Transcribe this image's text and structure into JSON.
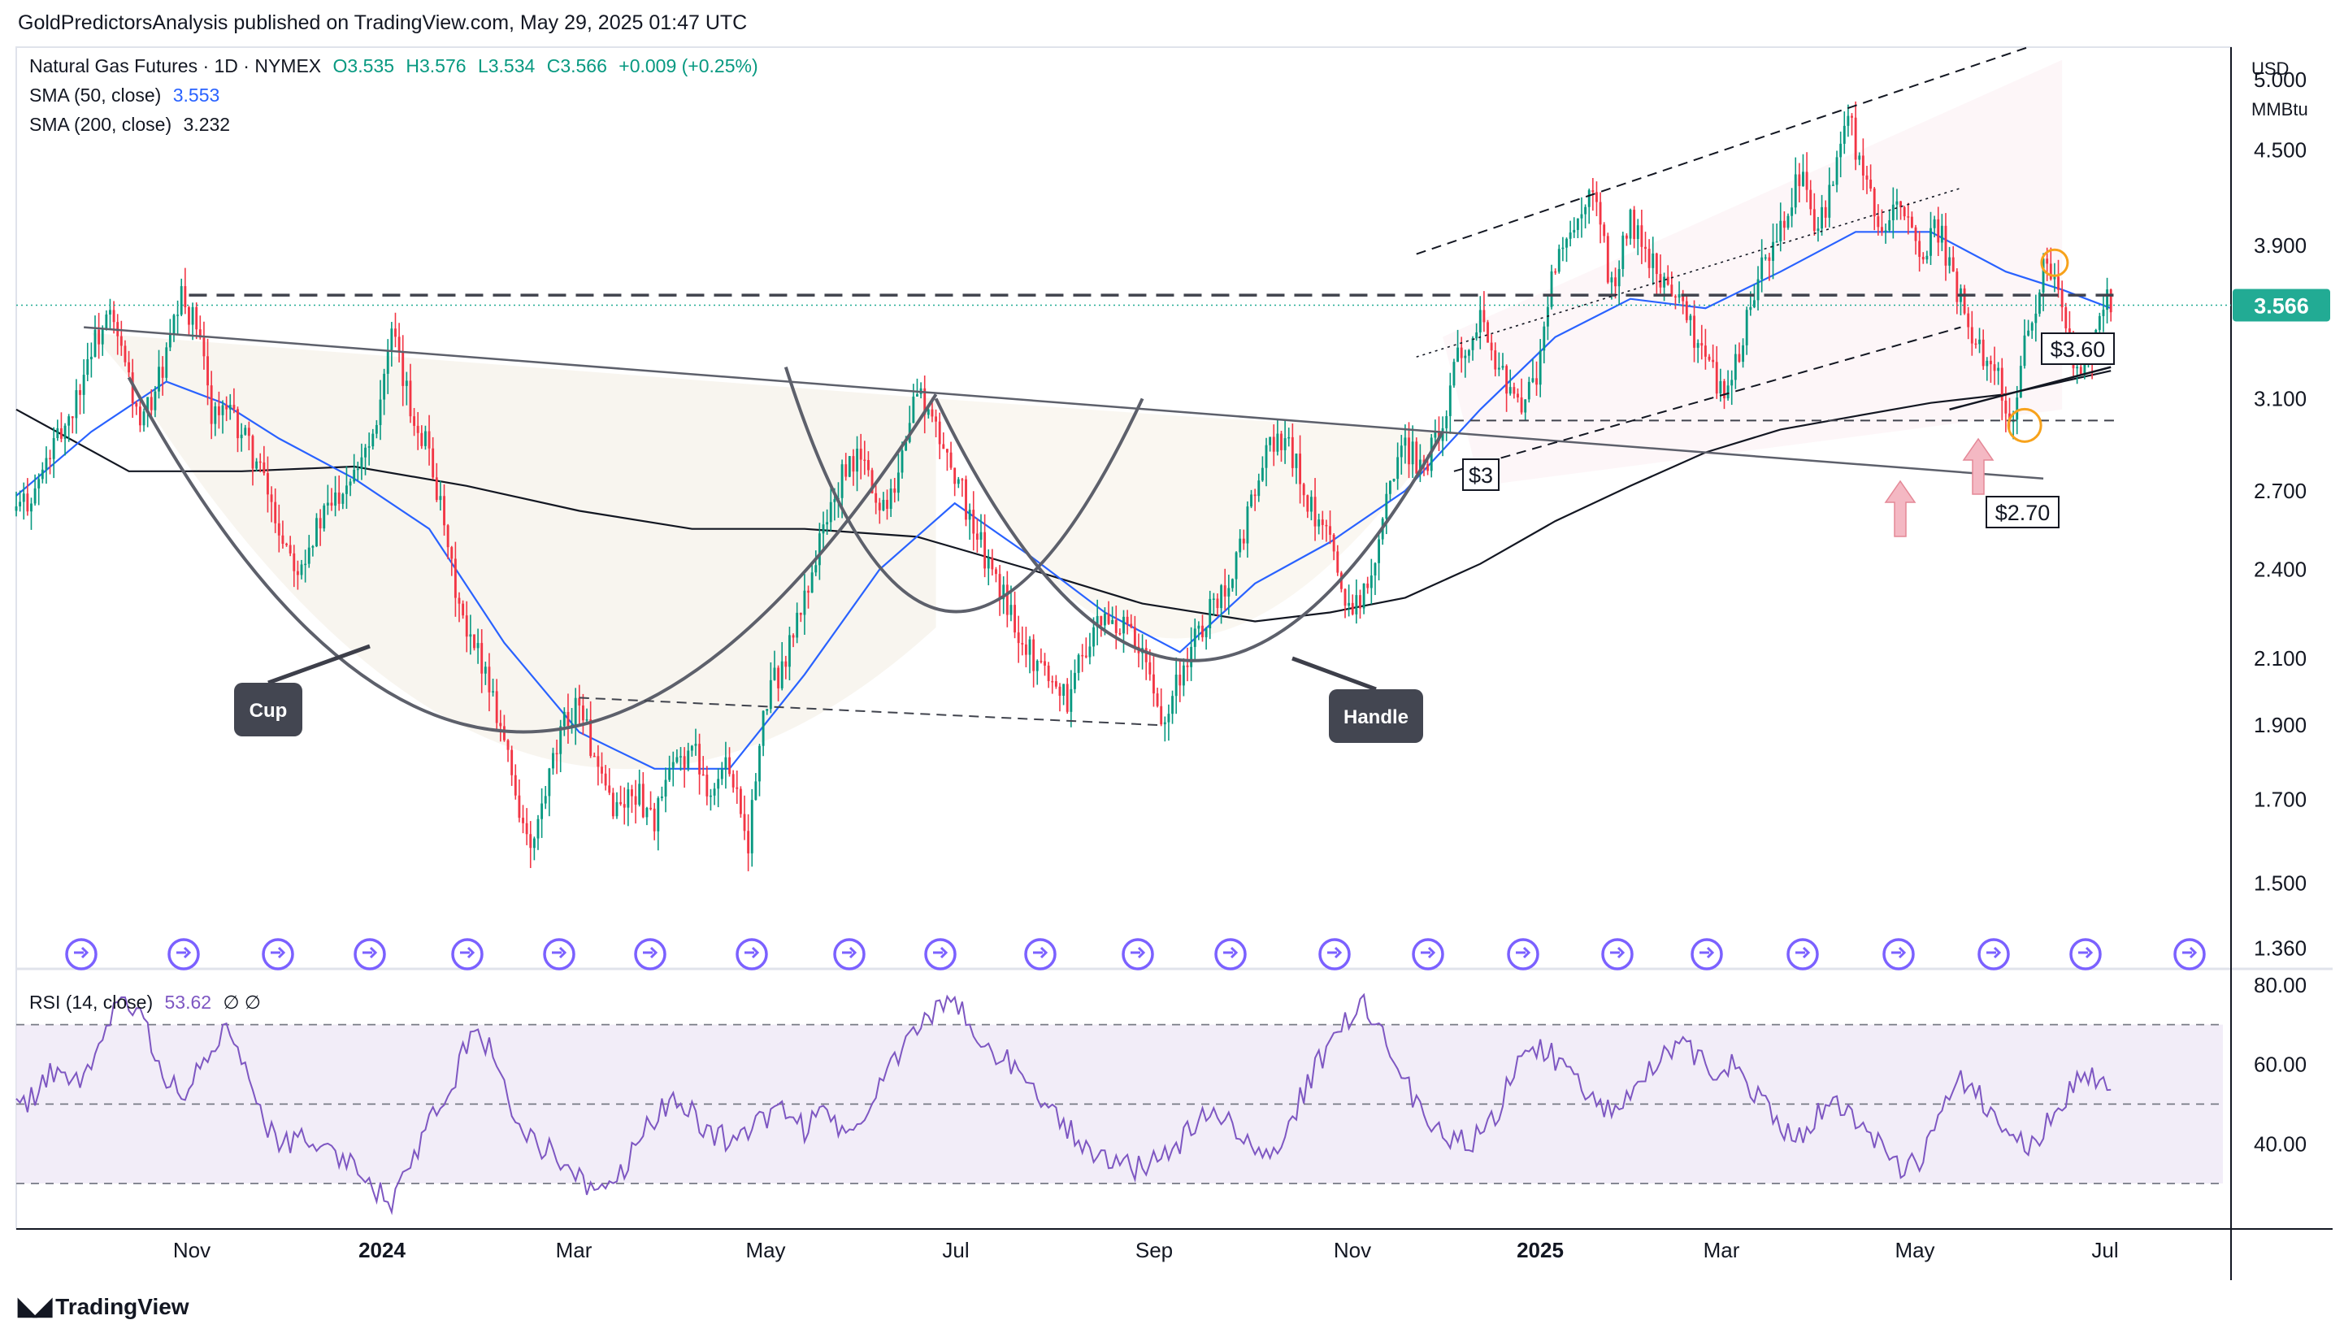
{
  "header": "GoldPredictorsAnalysis published on TradingView.com, May 29, 2025 01:47 UTC",
  "legend": {
    "main": "Natural Gas Futures · 1D · NYMEX",
    "o": "O3.535",
    "h": "H3.576",
    "l": "L3.534",
    "c": "C3.566",
    "change": "+0.009 (+0.25%)",
    "sma50_label": "SMA (50, close)",
    "sma50_value": "3.553",
    "sma200_label": "SMA (200, close)",
    "sma200_value": "3.232",
    "rsi_label": "RSI (14, close)",
    "rsi_value": "53.62",
    "rsi_extra": "∅ ∅"
  },
  "units": {
    "currency": "USD",
    "unit": "MMBtu"
  },
  "footer": "TradingView",
  "colors": {
    "up": "#089981",
    "down": "#f23645",
    "sma50": "#2962ff",
    "sma200": "#131722",
    "rsi": "#7e57c2",
    "price_tag": "#22ab94"
  },
  "chart_data": [
    {
      "type": "candlestick",
      "title": "Natural Gas Futures · 1D · NYMEX",
      "y_axis_ticks": [
        "5.000",
        "4.500",
        "3.900",
        "3.100",
        "2.700",
        "2.400",
        "2.100",
        "1.900",
        "1.700",
        "1.500",
        "1.360"
      ],
      "y_scale": "log",
      "ylim": [
        1.33,
        5.25
      ],
      "x_ticks": [
        "Nov",
        "2024",
        "Mar",
        "May",
        "Jul",
        "Sep",
        "Nov",
        "2025",
        "Mar",
        "May",
        "Jul"
      ],
      "last_price": "3.566",
      "annotations": [
        "Cup",
        "Handle",
        "$3",
        "$3.60",
        "$2.70"
      ],
      "price_path": [
        [
          0,
          2.62
        ],
        [
          5,
          2.7
        ],
        [
          9,
          2.85
        ],
        [
          12,
          2.95
        ],
        [
          15,
          3.05
        ],
        [
          20,
          3.35
        ],
        [
          25,
          3.5
        ],
        [
          30,
          3.2
        ],
        [
          33,
          2.95
        ],
        [
          40,
          3.3
        ],
        [
          44,
          3.6
        ],
        [
          48,
          3.45
        ],
        [
          52,
          3.05
        ],
        [
          57,
          3.02
        ],
        [
          60,
          2.95
        ],
        [
          65,
          2.78
        ],
        [
          70,
          2.55
        ],
        [
          75,
          2.42
        ],
        [
          82,
          2.6
        ],
        [
          88,
          2.75
        ],
        [
          95,
          2.95
        ],
        [
          100,
          3.4
        ],
        [
          105,
          3.05
        ],
        [
          110,
          2.88
        ],
        [
          115,
          2.45
        ],
        [
          120,
          2.15
        ],
        [
          124,
          2.1
        ],
        [
          128,
          1.95
        ],
        [
          133,
          1.72
        ],
        [
          137,
          1.56
        ],
        [
          142,
          1.75
        ],
        [
          146,
          1.9
        ],
        [
          150,
          1.98
        ],
        [
          155,
          1.75
        ],
        [
          160,
          1.68
        ],
        [
          165,
          1.72
        ],
        [
          170,
          1.65
        ],
        [
          175,
          1.78
        ],
        [
          180,
          1.84
        ],
        [
          185,
          1.72
        ],
        [
          190,
          1.8
        ],
        [
          195,
          1.6
        ],
        [
          200,
          1.98
        ],
        [
          205,
          2.1
        ],
        [
          210,
          2.3
        ],
        [
          215,
          2.55
        ],
        [
          220,
          2.75
        ],
        [
          225,
          2.85
        ],
        [
          230,
          2.62
        ],
        [
          235,
          2.78
        ],
        [
          240,
          3.15
        ],
        [
          245,
          2.95
        ],
        [
          250,
          2.78
        ],
        [
          255,
          2.55
        ],
        [
          260,
          2.38
        ],
        [
          265,
          2.25
        ],
        [
          270,
          2.12
        ],
        [
          275,
          2.05
        ],
        [
          280,
          1.98
        ],
        [
          285,
          2.15
        ],
        [
          290,
          2.22
        ],
        [
          295,
          2.2
        ],
        [
          300,
          2.1
        ],
        [
          305,
          1.92
        ],
        [
          310,
          2.05
        ],
        [
          315,
          2.18
        ],
        [
          320,
          2.3
        ],
        [
          325,
          2.42
        ],
        [
          330,
          2.7
        ],
        [
          335,
          2.92
        ],
        [
          340,
          2.85
        ],
        [
          345,
          2.62
        ],
        [
          350,
          2.48
        ],
        [
          355,
          2.28
        ],
        [
          360,
          2.32
        ],
        [
          365,
          2.7
        ],
        [
          370,
          2.88
        ],
        [
          375,
          2.8
        ],
        [
          380,
          3.0
        ],
        [
          385,
          3.35
        ],
        [
          390,
          3.5
        ],
        [
          395,
          3.25
        ],
        [
          400,
          3.05
        ],
        [
          405,
          3.2
        ],
        [
          410,
          3.8
        ],
        [
          415,
          3.95
        ],
        [
          420,
          4.2
        ],
        [
          425,
          3.65
        ],
        [
          430,
          4.05
        ],
        [
          435,
          3.8
        ],
        [
          440,
          3.7
        ],
        [
          445,
          3.5
        ],
        [
          450,
          3.3
        ],
        [
          455,
          3.1
        ],
        [
          460,
          3.4
        ],
        [
          465,
          3.75
        ],
        [
          470,
          4.0
        ],
        [
          475,
          4.35
        ],
        [
          480,
          3.95
        ],
        [
          485,
          4.4
        ],
        [
          488,
          4.75
        ],
        [
          492,
          4.25
        ],
        [
          497,
          4.05
        ],
        [
          502,
          4.1
        ],
        [
          507,
          3.85
        ],
        [
          512,
          4.0
        ],
        [
          517,
          3.65
        ],
        [
          522,
          3.35
        ],
        [
          527,
          3.25
        ],
        [
          532,
          3.0
        ],
        [
          536,
          3.45
        ],
        [
          540,
          3.75
        ],
        [
          543,
          3.7
        ],
        [
          547,
          3.4
        ],
        [
          550,
          3.15
        ],
        [
          553,
          3.35
        ],
        [
          556,
          3.6
        ],
        [
          558,
          3.566
        ]
      ],
      "sma50": [
        [
          0,
          2.68
        ],
        [
          20,
          2.95
        ],
        [
          40,
          3.18
        ],
        [
          55,
          3.08
        ],
        [
          70,
          2.92
        ],
        [
          90,
          2.75
        ],
        [
          110,
          2.55
        ],
        [
          130,
          2.15
        ],
        [
          150,
          1.88
        ],
        [
          170,
          1.78
        ],
        [
          190,
          1.78
        ],
        [
          210,
          2.05
        ],
        [
          230,
          2.4
        ],
        [
          250,
          2.65
        ],
        [
          270,
          2.45
        ],
        [
          290,
          2.25
        ],
        [
          310,
          2.12
        ],
        [
          330,
          2.35
        ],
        [
          350,
          2.5
        ],
        [
          370,
          2.7
        ],
        [
          390,
          3.05
        ],
        [
          410,
          3.4
        ],
        [
          430,
          3.6
        ],
        [
          450,
          3.55
        ],
        [
          470,
          3.75
        ],
        [
          490,
          3.98
        ],
        [
          510,
          3.98
        ],
        [
          530,
          3.75
        ],
        [
          545,
          3.65
        ],
        [
          558,
          3.55
        ]
      ],
      "sma200": [
        [
          0,
          3.05
        ],
        [
          30,
          2.78
        ],
        [
          60,
          2.78
        ],
        [
          90,
          2.8
        ],
        [
          120,
          2.72
        ],
        [
          150,
          2.62
        ],
        [
          180,
          2.55
        ],
        [
          210,
          2.55
        ],
        [
          240,
          2.52
        ],
        [
          270,
          2.4
        ],
        [
          300,
          2.28
        ],
        [
          330,
          2.22
        ],
        [
          350,
          2.25
        ],
        [
          370,
          2.3
        ],
        [
          390,
          2.42
        ],
        [
          410,
          2.58
        ],
        [
          430,
          2.72
        ],
        [
          450,
          2.86
        ],
        [
          470,
          2.96
        ],
        [
          490,
          3.02
        ],
        [
          510,
          3.08
        ],
        [
          530,
          3.12
        ],
        [
          545,
          3.18
        ],
        [
          558,
          3.232
        ]
      ]
    },
    {
      "type": "line",
      "title": "RSI (14, close)",
      "y_axis_ticks": [
        "80.00",
        "60.00",
        "40.00"
      ],
      "ylim": [
        20,
        82
      ],
      "bands": [
        70,
        50,
        30
      ],
      "series": [
        {
          "name": "RSI (14, close)",
          "values": [
            48,
            52,
            60,
            55,
            65,
            75,
            72,
            60,
            50,
            62,
            70,
            58,
            45,
            40,
            42,
            38,
            35,
            30,
            25,
            35,
            45,
            55,
            70,
            62,
            48,
            40,
            38,
            32,
            28,
            30,
            40,
            48,
            52,
            44,
            42,
            40,
            46,
            50,
            44,
            48,
            42,
            50,
            58,
            66,
            72,
            78,
            70,
            62,
            60,
            55,
            48,
            42,
            38,
            35,
            34,
            36,
            40,
            45,
            48,
            42,
            36,
            40,
            52,
            62,
            70,
            75,
            66,
            55,
            48,
            42,
            40,
            44,
            55,
            65,
            62,
            58,
            50,
            48,
            52,
            60,
            66,
            62,
            58,
            60,
            52,
            44,
            42,
            48,
            50,
            46,
            40,
            32,
            38,
            54,
            56,
            50,
            42,
            38,
            45,
            54,
            58,
            53.62
          ]
        }
      ]
    }
  ]
}
